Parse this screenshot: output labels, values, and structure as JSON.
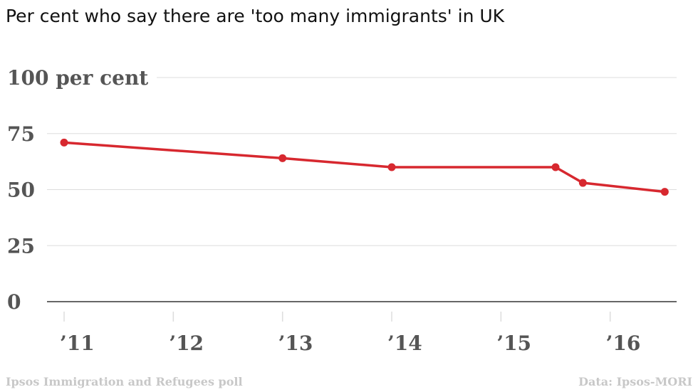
{
  "chart_data": {
    "type": "line",
    "title": "Per cent who say there are 'too many immigrants' in UK",
    "xlabel": "",
    "ylabel": "",
    "y_ticks": [
      {
        "value": 100,
        "label": "100 per cent"
      },
      {
        "value": 75,
        "label": "75"
      },
      {
        "value": 50,
        "label": "50"
      },
      {
        "value": 25,
        "label": "25"
      },
      {
        "value": 0,
        "label": "0"
      }
    ],
    "x_ticks": [
      {
        "value": 2011,
        "label": "’11"
      },
      {
        "value": 2012,
        "label": "’12"
      },
      {
        "value": 2013,
        "label": "’13"
      },
      {
        "value": 2014,
        "label": "’14"
      },
      {
        "value": 2015,
        "label": "’15"
      },
      {
        "value": 2016,
        "label": "’16"
      }
    ],
    "xlim": [
      2011,
      2016.55
    ],
    "ylim": [
      0,
      100
    ],
    "grid": true,
    "series": [
      {
        "points": [
          {
            "x": 2011.0,
            "y": 71
          },
          {
            "x": 2013.0,
            "y": 64
          },
          {
            "x": 2014.0,
            "y": 60
          },
          {
            "x": 2015.5,
            "y": 60
          },
          {
            "x": 2015.75,
            "y": 53
          },
          {
            "x": 2016.5,
            "y": 49
          }
        ],
        "color": "#d7282f"
      }
    ],
    "colors": {
      "grid": "#dddddd",
      "axis": "#333333",
      "tick": "#555555",
      "footer": "#c8c8c8"
    }
  },
  "footer": {
    "left": "Ipsos Immigration and Refugees poll",
    "right": "Data: Ipsos-MORI"
  }
}
